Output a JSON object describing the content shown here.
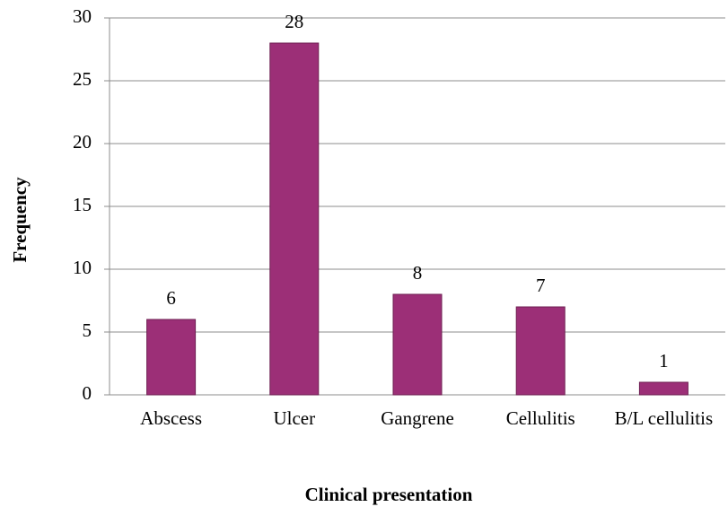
{
  "chart_data": {
    "type": "bar",
    "categories": [
      "Abscess",
      "Ulcer",
      "Gangrene",
      "Cellulitis",
      "B/L cellulitis"
    ],
    "values": [
      6,
      28,
      8,
      7,
      1
    ],
    "color": "#9c2f77",
    "xlabel": "Clinical presentation",
    "ylabel": "Frequency",
    "ylim": [
      0,
      30
    ],
    "yticks": [
      0,
      5,
      10,
      15,
      20,
      25,
      30
    ],
    "grid": true
  }
}
